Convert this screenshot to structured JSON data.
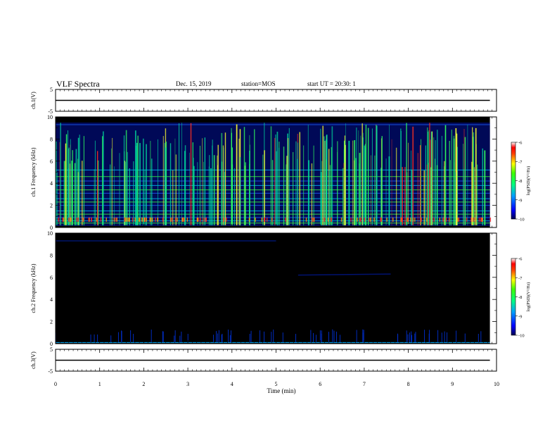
{
  "header": {
    "title": "VLF Spectra",
    "date": "Dec. 15, 2019",
    "station": "station=MOS",
    "start": "start UT = 20:30: 1"
  },
  "chart_data": [
    {
      "type": "line",
      "panel": "ch1-voltage",
      "ylabel": "ch.1(V)",
      "ylim": [
        -5,
        5
      ],
      "yticks": [
        "5",
        "-5"
      ],
      "x": [
        0,
        9.85
      ],
      "y": [
        0,
        0
      ]
    },
    {
      "type": "heatmap",
      "panel": "ch1-spectrogram",
      "ylabel": "ch.1 Frequency (kHz)",
      "ylim": [
        0,
        10
      ],
      "yticks": [
        "0",
        "2",
        "4",
        "6",
        "8",
        "10"
      ],
      "colorbar": {
        "label": "log(PSD)(V²/Hz)",
        "ticks": [
          "-6",
          "-7",
          "-8",
          "-9",
          "-10"
        ],
        "range": [
          -10,
          -6
        ]
      },
      "intensity": "high"
    },
    {
      "type": "heatmap",
      "panel": "ch2-spectrogram",
      "ylabel": "ch.2 Frequency (kHz)",
      "ylim": [
        0,
        10
      ],
      "yticks": [
        "0",
        "2",
        "4",
        "6",
        "8",
        "10"
      ],
      "colorbar": {
        "label": "log(PSD)(V²/Hz)",
        "ticks": [
          "-6",
          "-7",
          "-8",
          "-9",
          "-10"
        ],
        "range": [
          -10,
          -6
        ]
      },
      "intensity": "low"
    },
    {
      "type": "line",
      "panel": "ch3-voltage",
      "ylabel": "ch.3(V)",
      "ylim": [
        -5,
        5
      ],
      "yticks": [
        "5",
        "-5"
      ],
      "x": [
        0,
        9.85
      ],
      "y": [
        0,
        0
      ]
    }
  ],
  "x_axis": {
    "label": "Time (min)",
    "range": [
      0,
      10
    ],
    "ticks": [
      "0",
      "1",
      "2",
      "3",
      "4",
      "5",
      "6",
      "7",
      "8",
      "9",
      "10"
    ]
  },
  "colors": {
    "background": "#ffffff",
    "spectrogram_base": "#000000",
    "line": "#000000"
  }
}
